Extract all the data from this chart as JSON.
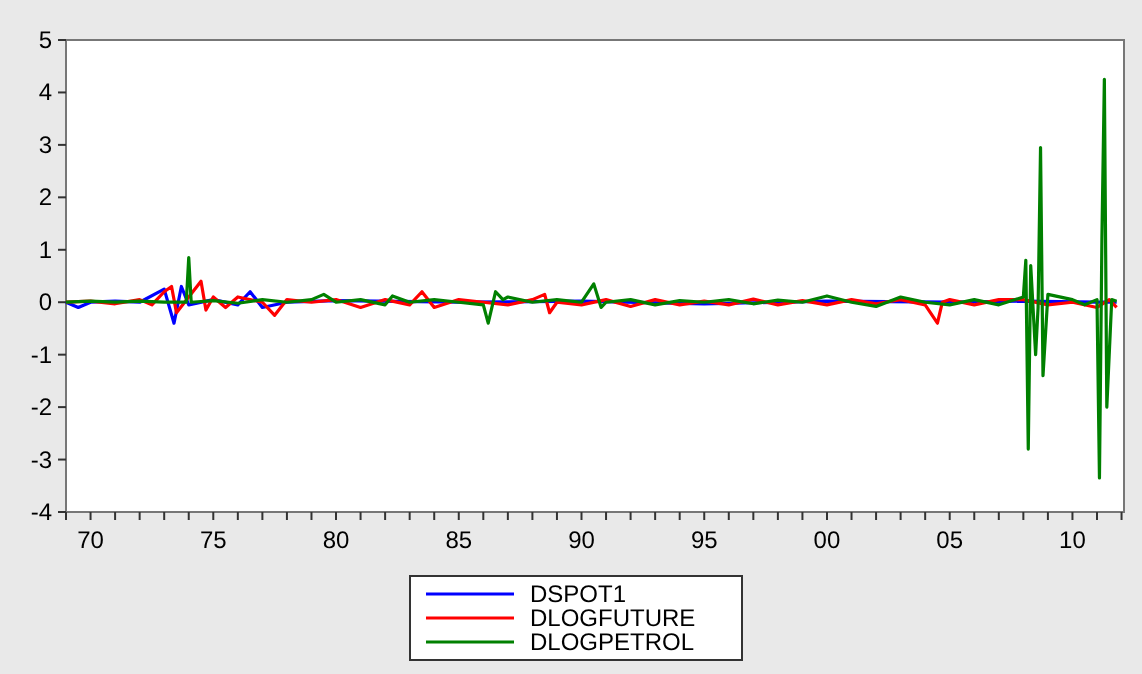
{
  "chart_data": {
    "type": "line",
    "xlim": [
      1969,
      2012.1
    ],
    "ylim": [
      -4,
      5
    ],
    "yticks": [
      -4,
      -3,
      -2,
      -1,
      0,
      1,
      2,
      3,
      4,
      5
    ],
    "xticks": [
      {
        "value": 1969,
        "label": null
      },
      {
        "value": 1970,
        "label": "70"
      },
      {
        "value": 1971,
        "label": null
      },
      {
        "value": 1972,
        "label": null
      },
      {
        "value": 1973,
        "label": null
      },
      {
        "value": 1974,
        "label": null
      },
      {
        "value": 1975,
        "label": "75"
      },
      {
        "value": 1976,
        "label": null
      },
      {
        "value": 1977,
        "label": null
      },
      {
        "value": 1978,
        "label": null
      },
      {
        "value": 1979,
        "label": null
      },
      {
        "value": 1980,
        "label": "80"
      },
      {
        "value": 1981,
        "label": null
      },
      {
        "value": 1982,
        "label": null
      },
      {
        "value": 1983,
        "label": null
      },
      {
        "value": 1984,
        "label": null
      },
      {
        "value": 1985,
        "label": "85"
      },
      {
        "value": 1986,
        "label": null
      },
      {
        "value": 1987,
        "label": null
      },
      {
        "value": 1988,
        "label": null
      },
      {
        "value": 1989,
        "label": null
      },
      {
        "value": 1990,
        "label": "90"
      },
      {
        "value": 1991,
        "label": null
      },
      {
        "value": 1992,
        "label": null
      },
      {
        "value": 1993,
        "label": null
      },
      {
        "value": 1994,
        "label": null
      },
      {
        "value": 1995,
        "label": "95"
      },
      {
        "value": 1996,
        "label": null
      },
      {
        "value": 1997,
        "label": null
      },
      {
        "value": 1998,
        "label": null
      },
      {
        "value": 1999,
        "label": null
      },
      {
        "value": 2000,
        "label": "00"
      },
      {
        "value": 2001,
        "label": null
      },
      {
        "value": 2002,
        "label": null
      },
      {
        "value": 2003,
        "label": null
      },
      {
        "value": 2004,
        "label": null
      },
      {
        "value": 2005,
        "label": "05"
      },
      {
        "value": 2006,
        "label": null
      },
      {
        "value": 2007,
        "label": null
      },
      {
        "value": 2008,
        "label": null
      },
      {
        "value": 2009,
        "label": null
      },
      {
        "value": 2010,
        "label": "10"
      },
      {
        "value": 2011,
        "label": null
      },
      {
        "value": 2012,
        "label": null
      }
    ],
    "grid": false,
    "legend": "bottom",
    "line_style": "solid",
    "marker": "none",
    "series": [
      {
        "name": "DSPOT1",
        "color": "#0000ff",
        "x": [
          1969,
          1969.5,
          1970,
          1971,
          1972,
          1973,
          1973.4,
          1973.7,
          1974,
          1975,
          1976,
          1976.5,
          1977,
          1978,
          1980,
          1985,
          1990,
          1995,
          2000,
          2005,
          2008,
          2011,
          2011.8
        ],
        "values": [
          0,
          -0.1,
          0,
          0.02,
          0,
          0.25,
          -0.4,
          0.3,
          -0.05,
          0.05,
          -0.05,
          0.2,
          -0.1,
          0,
          0.03,
          0,
          0.02,
          -0.03,
          0.02,
          0,
          0.02,
          0,
          0
        ]
      },
      {
        "name": "DLOGFUTURE",
        "color": "#ff0000",
        "x": [
          1969,
          1970,
          1971,
          1972,
          1972.5,
          1973,
          1973.3,
          1973.5,
          1974,
          1974.5,
          1974.7,
          1975,
          1975.5,
          1976,
          1977,
          1977.5,
          1978,
          1979,
          1980,
          1981,
          1982,
          1983,
          1983.5,
          1984,
          1985,
          1986,
          1987,
          1988,
          1988.5,
          1988.7,
          1989,
          1990,
          1991,
          1992,
          1993,
          1994,
          1995,
          1996,
          1997,
          1998,
          1999,
          2000,
          2001,
          2002,
          2003,
          2004,
          2004.5,
          2004.7,
          2005,
          2006,
          2007,
          2008,
          2009,
          2010,
          2011,
          2011.5,
          2011.8
        ],
        "values": [
          0,
          0.02,
          -0.03,
          0.05,
          -0.05,
          0.2,
          0.3,
          -0.2,
          0.1,
          0.4,
          -0.15,
          0.1,
          -0.1,
          0.1,
          0,
          -0.25,
          0.05,
          0,
          0.05,
          -0.1,
          0.05,
          -0.05,
          0.2,
          -0.1,
          0.05,
          0,
          -0.05,
          0.05,
          0.15,
          -0.2,
          0,
          -0.05,
          0.05,
          -0.08,
          0.05,
          -0.05,
          0.02,
          -0.05,
          0.06,
          -0.05,
          0.03,
          -0.05,
          0.05,
          -0.03,
          0.05,
          -0.05,
          -0.4,
          0,
          0.05,
          -0.05,
          0.05,
          0.05,
          -0.05,
          0,
          -0.1,
          0.05,
          -0.1
        ]
      },
      {
        "name": "DLOGPETROL",
        "color": "#008000",
        "x": [
          1969,
          1970,
          1971,
          1972,
          1973,
          1973.9,
          1974,
          1974.1,
          1975,
          1976,
          1977,
          1978,
          1979,
          1979.5,
          1980,
          1981,
          1982,
          1982.3,
          1983,
          1984,
          1985,
          1986,
          1986.2,
          1986.5,
          1986.8,
          1987,
          1988,
          1989,
          1990,
          1990.5,
          1990.8,
          1991,
          1992,
          1993,
          1994,
          1995,
          1996,
          1997,
          1998,
          1999,
          2000,
          2001,
          2002,
          2003,
          2004,
          2005,
          2006,
          2007,
          2008,
          2008.1,
          2008.2,
          2008.3,
          2008.5,
          2008.6,
          2008.7,
          2008.8,
          2009,
          2010,
          2010.5,
          2011,
          2011.1,
          2011.2,
          2011.3,
          2011.4,
          2011.6,
          2011.8
        ],
        "values": [
          0,
          0.02,
          0,
          0.02,
          0,
          0,
          0.85,
          0,
          0.03,
          -0.02,
          0.05,
          0,
          0.05,
          0.15,
          0,
          0.05,
          -0.05,
          0.12,
          0,
          0.05,
          0,
          -0.05,
          -0.4,
          0.2,
          0.05,
          0.1,
          0,
          0.05,
          0,
          0.35,
          -0.1,
          0,
          0.05,
          -0.05,
          0.03,
          0,
          0.05,
          -0.03,
          0.04,
          0,
          0.12,
          0,
          -0.08,
          0.1,
          0,
          -0.05,
          0.05,
          -0.05,
          0.1,
          0.8,
          -2.8,
          0.7,
          -1,
          -0.1,
          2.95,
          -1.4,
          0.15,
          0.05,
          -0.05,
          0.05,
          -3.35,
          1.2,
          4.25,
          -2,
          0.05,
          0.02
        ]
      }
    ]
  }
}
